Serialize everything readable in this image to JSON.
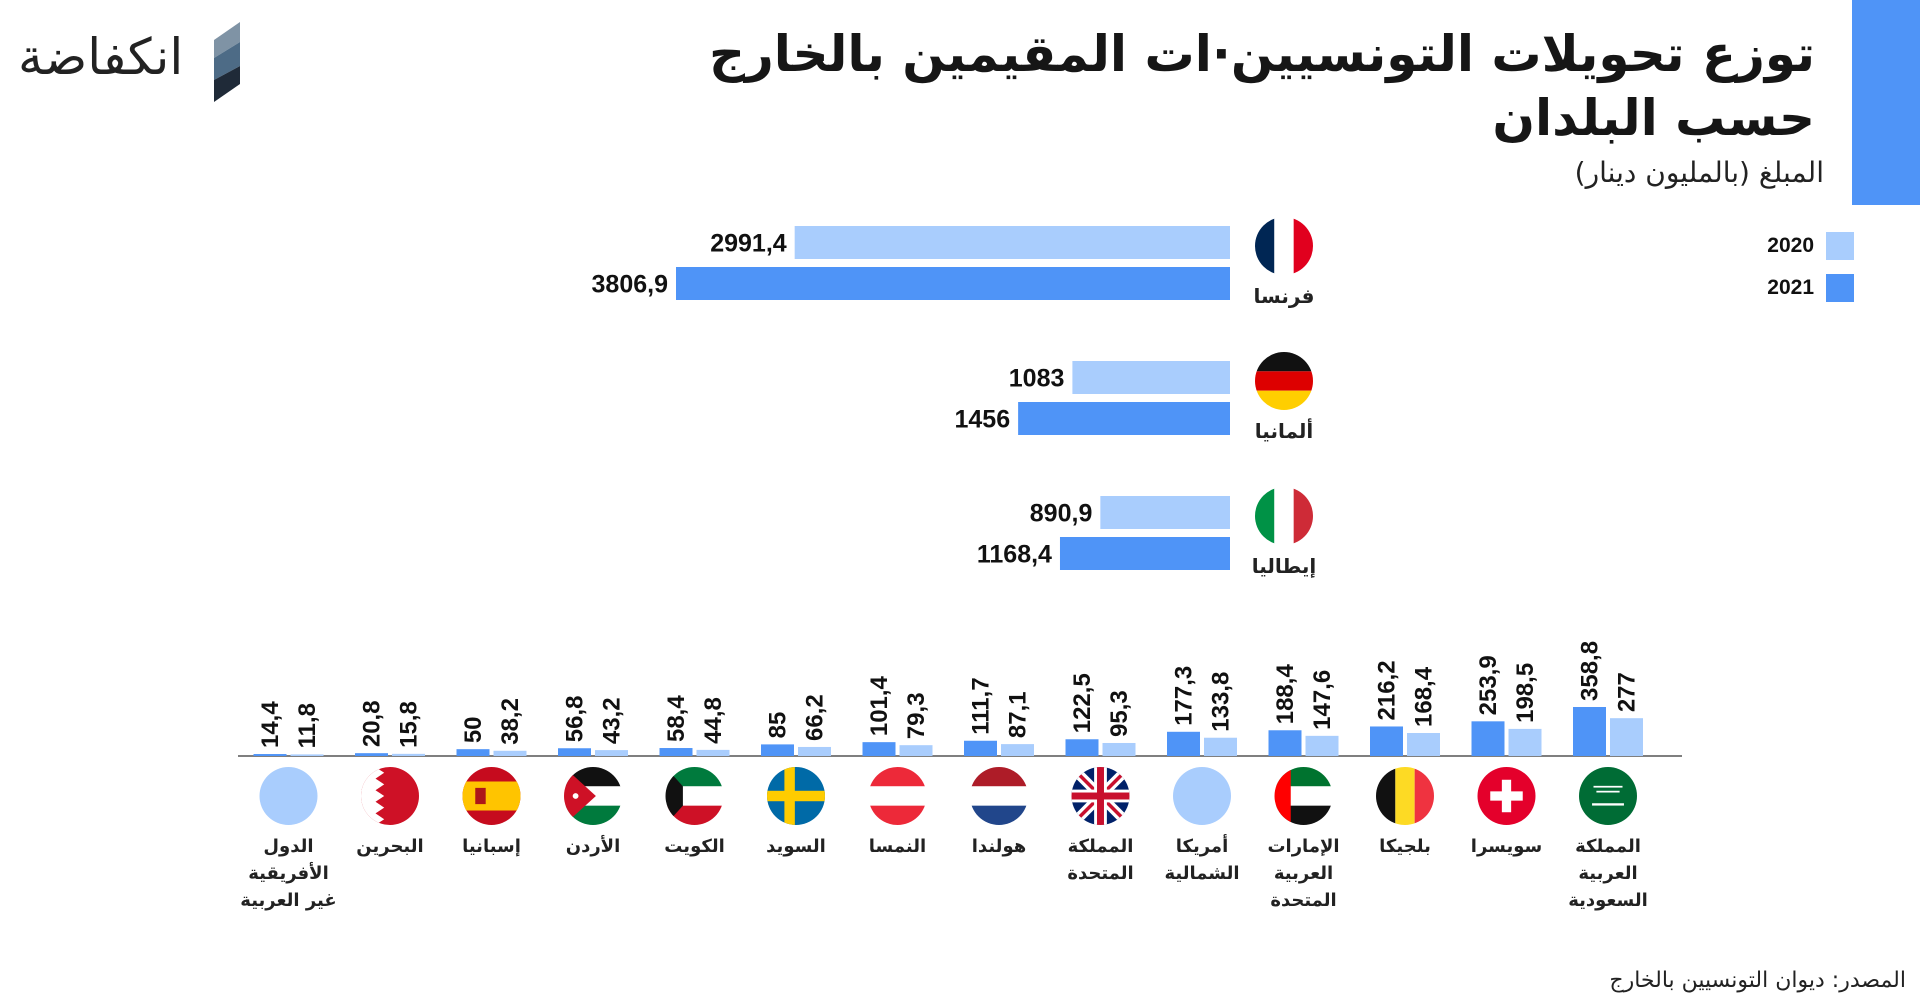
{
  "header": {
    "title": "توزع تحويلات التونسيين·ات المقيمين بالخارج حسب البلدان",
    "subtitle": "المبلغ (بالمليون دينار)"
  },
  "brand": {
    "logo_text": "انكفاضة"
  },
  "source": "المصدر: ديوان التونسيين بالخارج",
  "colors": {
    "accent": "#4f94f7",
    "y2020": "#a9cdfd",
    "y2021": "#4f94f7"
  },
  "chart_data": [
    {
      "type": "bar",
      "orientation": "horizontal",
      "categories": [
        "فرنسا",
        "ألمانيا",
        "إيطاليا"
      ],
      "flags": [
        "france-flag",
        "germany-flag",
        "italy-flag"
      ],
      "series": [
        {
          "name": "2020",
          "values": [
            2991.4,
            1083,
            890.9
          ],
          "labels": [
            "2991,4",
            "1083",
            "890,9"
          ]
        },
        {
          "name": "2021",
          "values": [
            3806.9,
            1456,
            1168.4
          ],
          "labels": [
            "3806,9",
            "1456",
            "1168,4"
          ]
        }
      ],
      "legend": "top-right"
    },
    {
      "type": "bar",
      "orientation": "vertical",
      "categories": [
        "المملكة العربية السعودية",
        "سويسرا",
        "بلجيكا",
        "الإمارات العربية المتحدة",
        "أمريكا الشمالية",
        "المملكة المتحدة",
        "هولندا",
        "النمسا",
        "السويد",
        "الكويت",
        "الأردن",
        "إسبانيا",
        "البحرين",
        "الدول الأفريقية غير العربية"
      ],
      "category_lines": [
        [
          "المملكة",
          "العربية",
          "السعودية"
        ],
        [
          "سويسرا"
        ],
        [
          "بلجيكا"
        ],
        [
          "الإمارات",
          "العربية",
          "المتحدة"
        ],
        [
          "أمريكا",
          "الشمالية"
        ],
        [
          "المملكة",
          "المتحدة"
        ],
        [
          "هولندا"
        ],
        [
          "النمسا"
        ],
        [
          "السويد"
        ],
        [
          "الكويت"
        ],
        [
          "الأردن"
        ],
        [
          "إسبانيا"
        ],
        [
          "البحرين"
        ],
        [
          "الدول",
          "الأفريقية",
          "غير العربية"
        ]
      ],
      "flags": [
        "saudi-arabia-flag",
        "switzerland-flag",
        "belgium-flag",
        "uae-flag",
        "north-america-circle",
        "uk-flag",
        "netherlands-flag",
        "austria-flag",
        "sweden-flag",
        "kuwait-flag",
        "jordan-flag",
        "spain-flag",
        "bahrain-flag",
        "africa-circle"
      ],
      "series": [
        {
          "name": "2021",
          "values": [
            358.8,
            253.9,
            216.2,
            188.4,
            177.3,
            122.5,
            111.7,
            101.4,
            85,
            58.4,
            56.8,
            50,
            20.8,
            14.4
          ],
          "labels": [
            "358,8",
            "253,9",
            "216,2",
            "188,4",
            "177,3",
            "122,5",
            "111,7",
            "101,4",
            "85",
            "58,4",
            "56,8",
            "50",
            "20,8",
            "14,4"
          ]
        },
        {
          "name": "2020",
          "values": [
            277,
            198.5,
            168.4,
            147.6,
            133.8,
            95.3,
            87.1,
            79.3,
            66.2,
            44.8,
            43.2,
            38.2,
            15.8,
            11.8
          ],
          "labels": [
            "277",
            "198,5",
            "168,4",
            "147,6",
            "133,8",
            "95,3",
            "87,1",
            "79,3",
            "66,2",
            "44,8",
            "43,2",
            "38,2",
            "15,8",
            "11,8"
          ]
        }
      ]
    }
  ]
}
